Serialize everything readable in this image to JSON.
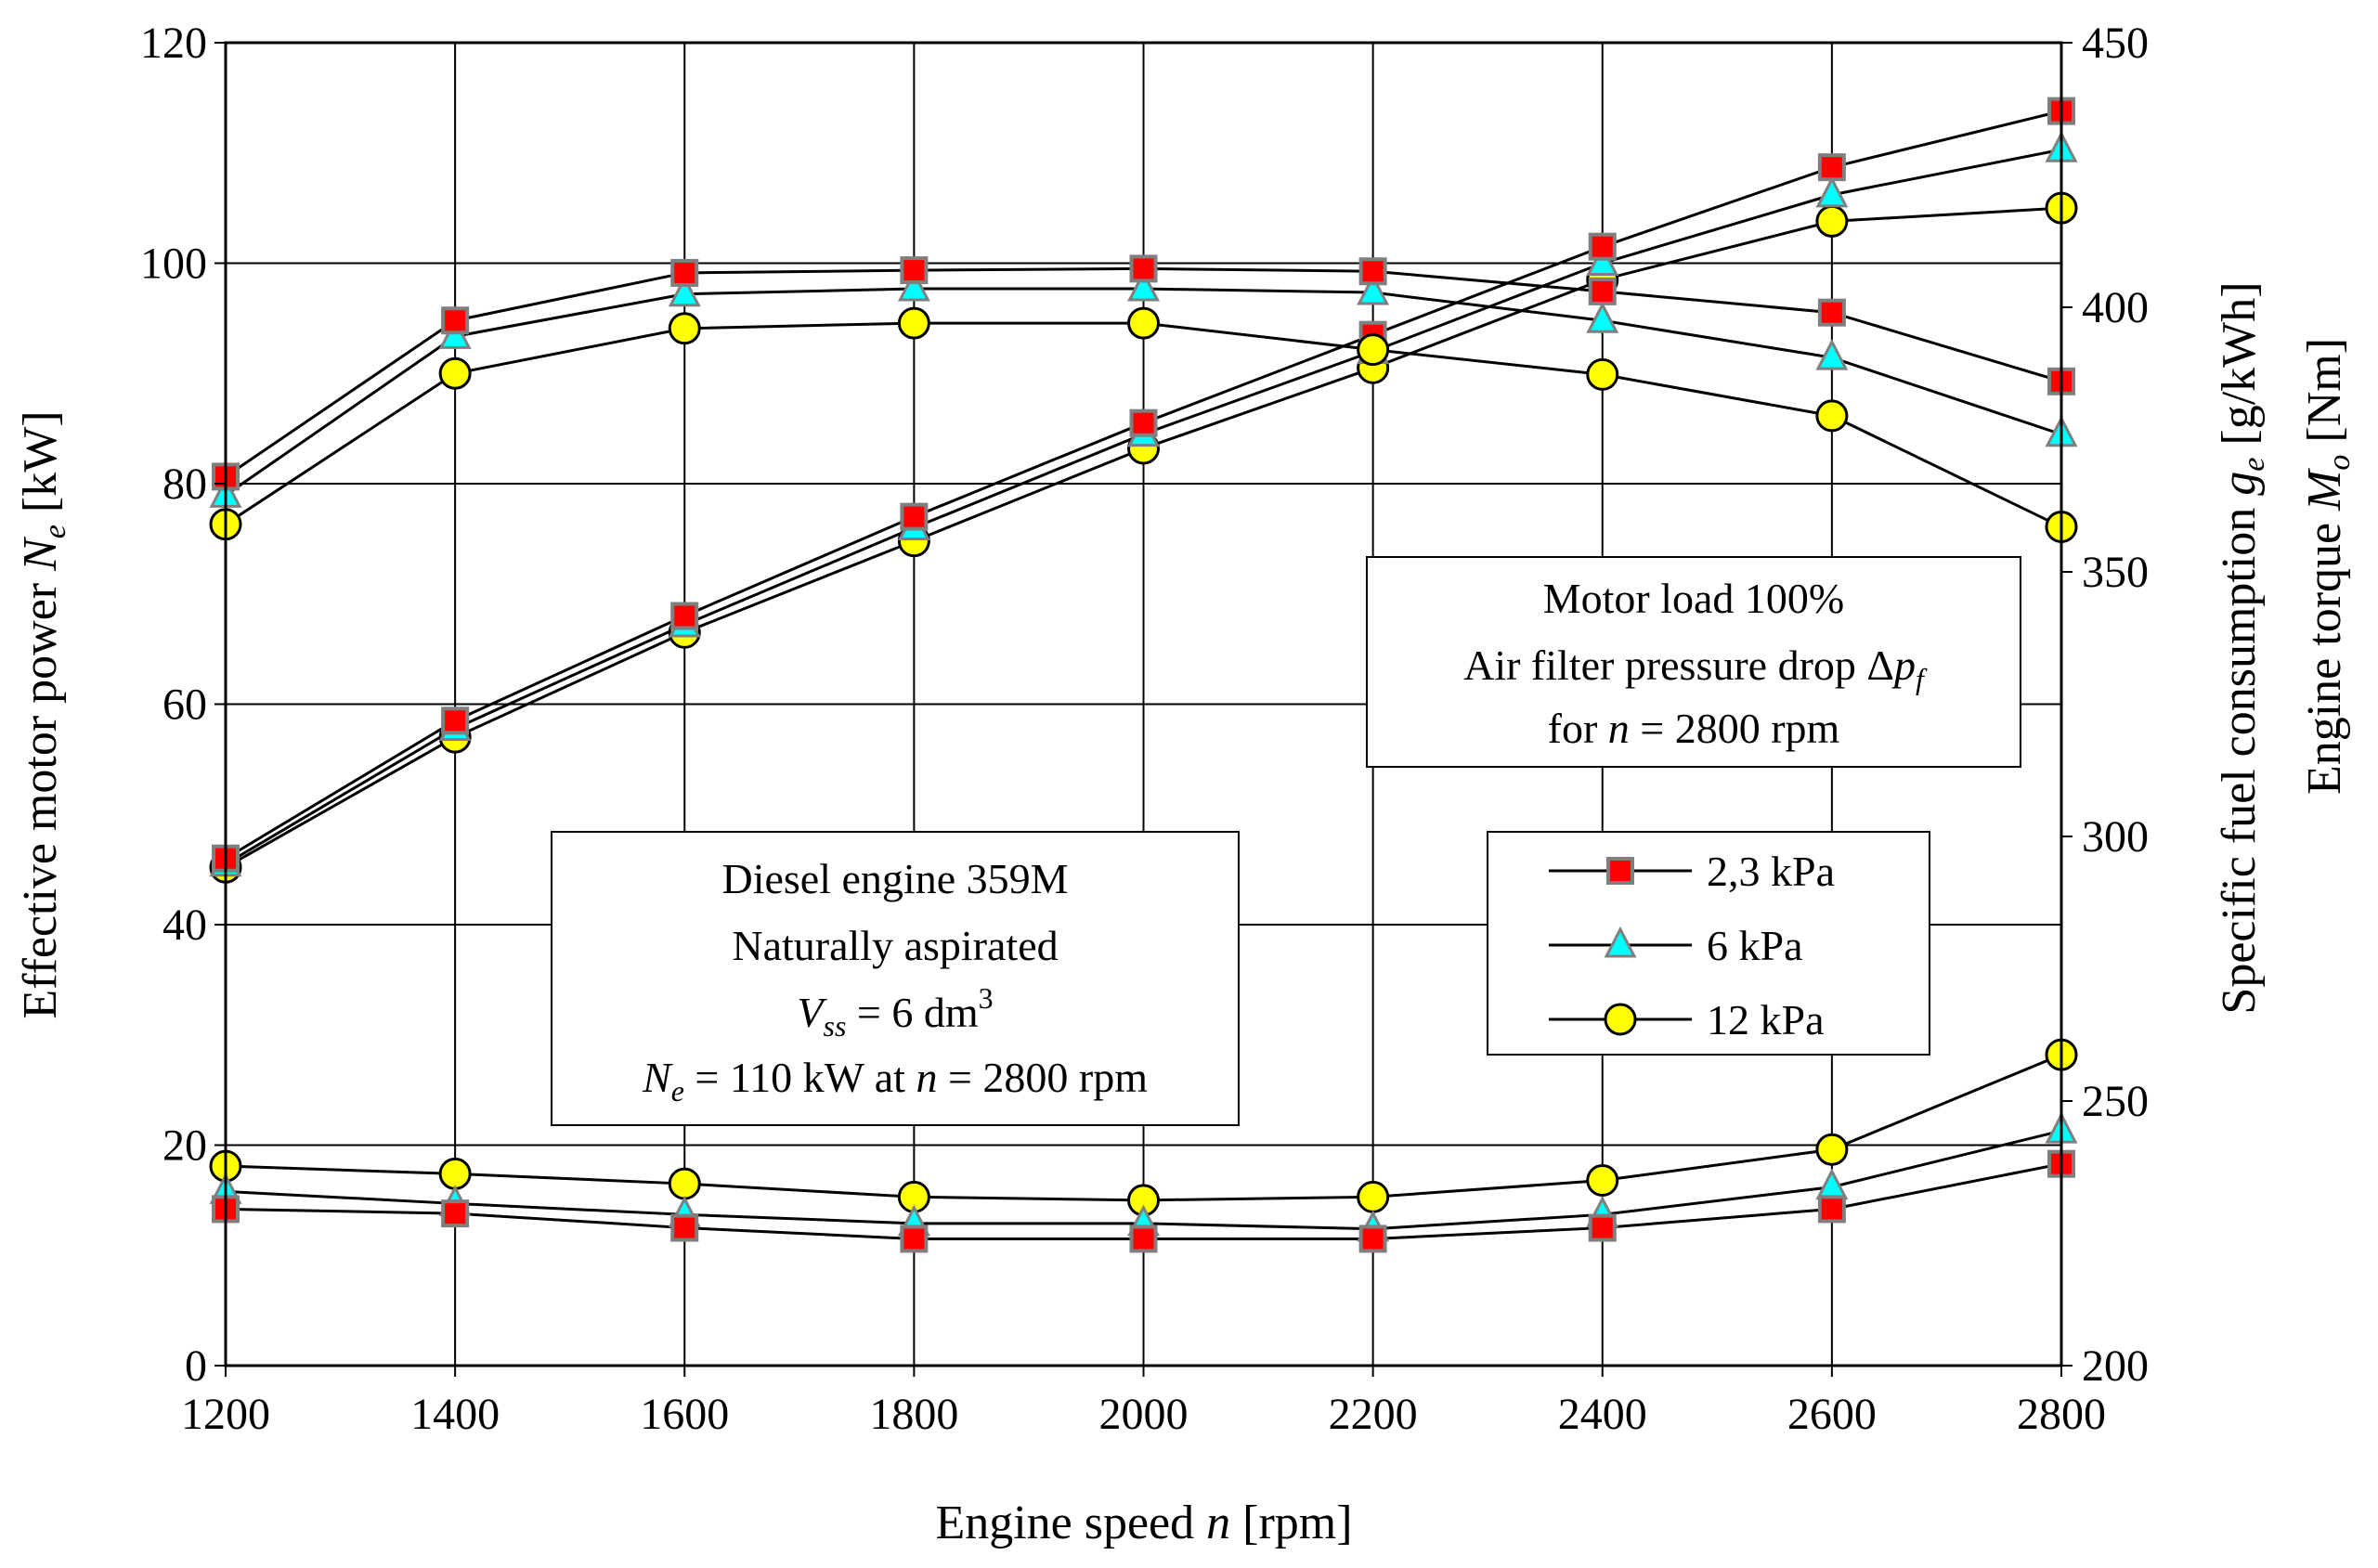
{
  "chart_data": {
    "type": "line",
    "x": [
      1200,
      1400,
      1600,
      1800,
      2000,
      2200,
      2400,
      2600,
      2800
    ],
    "xlabel": {
      "prefix": "Engine speed ",
      "var": "n",
      "suffix": " [rpm]"
    },
    "xlim": [
      1200,
      2800
    ],
    "xticks": [
      "1200",
      "1400",
      "1600",
      "1800",
      "2000",
      "2200",
      "2400",
      "2600",
      "2800"
    ],
    "y_left": {
      "label": {
        "prefix": "Effective motor power ",
        "var": "N",
        "sub": "e",
        "suffix": " [kW]"
      },
      "ylim": [
        0,
        120
      ],
      "ticks": [
        "0",
        "20",
        "40",
        "60",
        "80",
        "100",
        "120"
      ]
    },
    "y_right": {
      "label1": {
        "prefix": "Specific fuel consumption ",
        "var": "g",
        "sub": "e",
        "suffix": " [g/kWh]"
      },
      "label2": {
        "prefix": "Engine torque ",
        "var": "M",
        "sub": "o",
        "suffix": " [Nm]"
      },
      "ylim": [
        200,
        450
      ],
      "ticks": [
        "200",
        "250",
        "300",
        "350",
        "400",
        "450"
      ]
    },
    "grid": true,
    "series_styles": {
      "2,3 kPa": {
        "marker": "square",
        "fill": "#ff0000",
        "stroke": "#7f7f7f"
      },
      "6 kPa": {
        "marker": "triangle",
        "fill": "#00ffff",
        "stroke": "#7f7f7f"
      },
      "12 kPa": {
        "marker": "circle",
        "fill": "#ffff00",
        "stroke": "#000000"
      }
    },
    "groups": [
      {
        "quantity": "Effective motor power (left axis, kW)",
        "axis": "left",
        "series": [
          {
            "name": "2,3 kPa",
            "values": [
              46,
              58.5,
              68,
              77,
              85.5,
              93.5,
              101.5,
              108.7,
              113.8
            ]
          },
          {
            "name": "6 kPa",
            "values": [
              45.5,
              57.8,
              67.2,
              76,
              84.5,
              92,
              100,
              106.2,
              110.3
            ]
          },
          {
            "name": "12 kPa",
            "values": [
              45.2,
              57,
              66.5,
              74.8,
              83.2,
              90.5,
              98.5,
              103.8,
              105
            ]
          }
        ]
      },
      {
        "quantity": "Engine torque (right axis, Nm)",
        "axis": "right",
        "series": [
          {
            "name": "2,3 kPa",
            "values": [
              368,
              397.5,
              406.5,
              407,
              407.3,
              406.8,
              403,
              399,
              386
            ]
          },
          {
            "name": "6 kPa",
            "values": [
              364.5,
              394.5,
              402.5,
              403.5,
              403.5,
              402.8,
              397.5,
              390.5,
              376
            ]
          },
          {
            "name": "12 kPa",
            "values": [
              359,
              387.5,
              396,
              397,
              397,
              392,
              387.3,
              379.5,
              358.5
            ]
          }
        ]
      },
      {
        "quantity": "Specific fuel consumption (left axis scale)",
        "axis": "left",
        "series": [
          {
            "name": "2,3 kPa",
            "values": [
              14.2,
              13.8,
              12.5,
              11.5,
              11.5,
              11.5,
              12.5,
              14.2,
              18.3
            ]
          },
          {
            "name": "6 kPa",
            "values": [
              15.8,
              14.7,
              13.7,
              12.9,
              12.9,
              12.4,
              13.7,
              16.2,
              21.3
            ]
          },
          {
            "name": "12 kPa",
            "values": [
              18.1,
              17.4,
              16.5,
              15.3,
              15,
              15.3,
              16.8,
              19.6,
              28.2
            ]
          }
        ]
      }
    ],
    "annotations": [
      {
        "id": "load",
        "lines": [
          "Motor load 100%",
          "Air filter pressure drop Δp_f",
          "for n = 2800 rpm"
        ]
      },
      {
        "id": "engine",
        "lines": [
          "Diesel engine 359M",
          "Naturally aspirated",
          "V_ss = 6 dm^3",
          "N_e = 110 kW at n = 2800 rpm"
        ]
      }
    ],
    "annotation_parts": {
      "load_line1": "Motor load 100%",
      "load_line2_prefix": "Air filter pressure drop Δ",
      "load_line2_var": "p",
      "load_line2_sub": "f",
      "load_line3_prefix": "for ",
      "load_line3_var": "n",
      "load_line3_suffix": " = 2800 rpm",
      "engine_line1": "Diesel engine 359M",
      "engine_line2": "Naturally aspirated",
      "engine_line3_var": "V",
      "engine_line3_sub": "ss",
      "engine_line3_mid": " = 6 dm",
      "engine_line3_sup": "3",
      "engine_line4_var": "N",
      "engine_line4_sub": "e",
      "engine_line4_mid": " = 110 kW at ",
      "engine_line4_var2": "n",
      "engine_line4_suffix": " = 2800 rpm"
    },
    "legend": {
      "position": "center-right",
      "entries": [
        "2,3 kPa",
        "6 kPa",
        "12 kPa"
      ]
    }
  }
}
